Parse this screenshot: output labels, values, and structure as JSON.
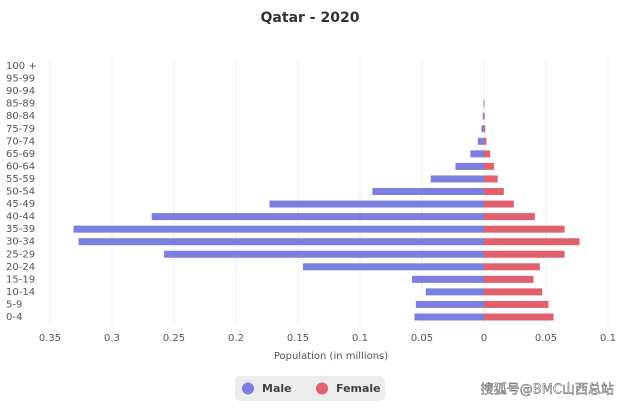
{
  "chart_data": {
    "type": "pyramid",
    "title": "Qatar - 2020",
    "x_label": "Population (in millions)",
    "categories": [
      "0-4",
      "5-9",
      "10-14",
      "15-19",
      "20-24",
      "25-29",
      "30-34",
      "35-39",
      "40-44",
      "45-49",
      "50-54",
      "55-59",
      "60-64",
      "65-69",
      "70-74",
      "75-79",
      "80-84",
      "85-89",
      "90-94",
      "95-99",
      "100 +"
    ],
    "series": [
      {
        "name": "Male",
        "color": "#7b7fe0",
        "side": "left",
        "values": [
          0.056,
          0.055,
          0.047,
          0.058,
          0.146,
          0.258,
          0.327,
          0.331,
          0.268,
          0.173,
          0.09,
          0.043,
          0.023,
          0.011,
          0.005,
          0.002,
          0.001,
          0.0005,
          0,
          0,
          0
        ]
      },
      {
        "name": "Female",
        "color": "#e0606e",
        "side": "right",
        "values": [
          0.056,
          0.052,
          0.047,
          0.04,
          0.045,
          0.065,
          0.077,
          0.065,
          0.041,
          0.024,
          0.016,
          0.011,
          0.008,
          0.005,
          0.002,
          0.001,
          0.0005,
          0.0003,
          0,
          0,
          0
        ]
      }
    ],
    "xlim": [
      -0.35,
      0.1
    ],
    "xticks": [
      {
        "value": -0.35,
        "label": "0.35"
      },
      {
        "value": -0.3,
        "label": "0.3"
      },
      {
        "value": -0.25,
        "label": "0.25"
      },
      {
        "value": -0.2,
        "label": "0.2"
      },
      {
        "value": -0.15,
        "label": "0.15"
      },
      {
        "value": -0.1,
        "label": "0.1"
      },
      {
        "value": -0.05,
        "label": "0.05"
      },
      0,
      0.05,
      0.1
    ],
    "grid": true,
    "legend": "bottom"
  },
  "watermark": "搜狐号@BMC山西总站"
}
